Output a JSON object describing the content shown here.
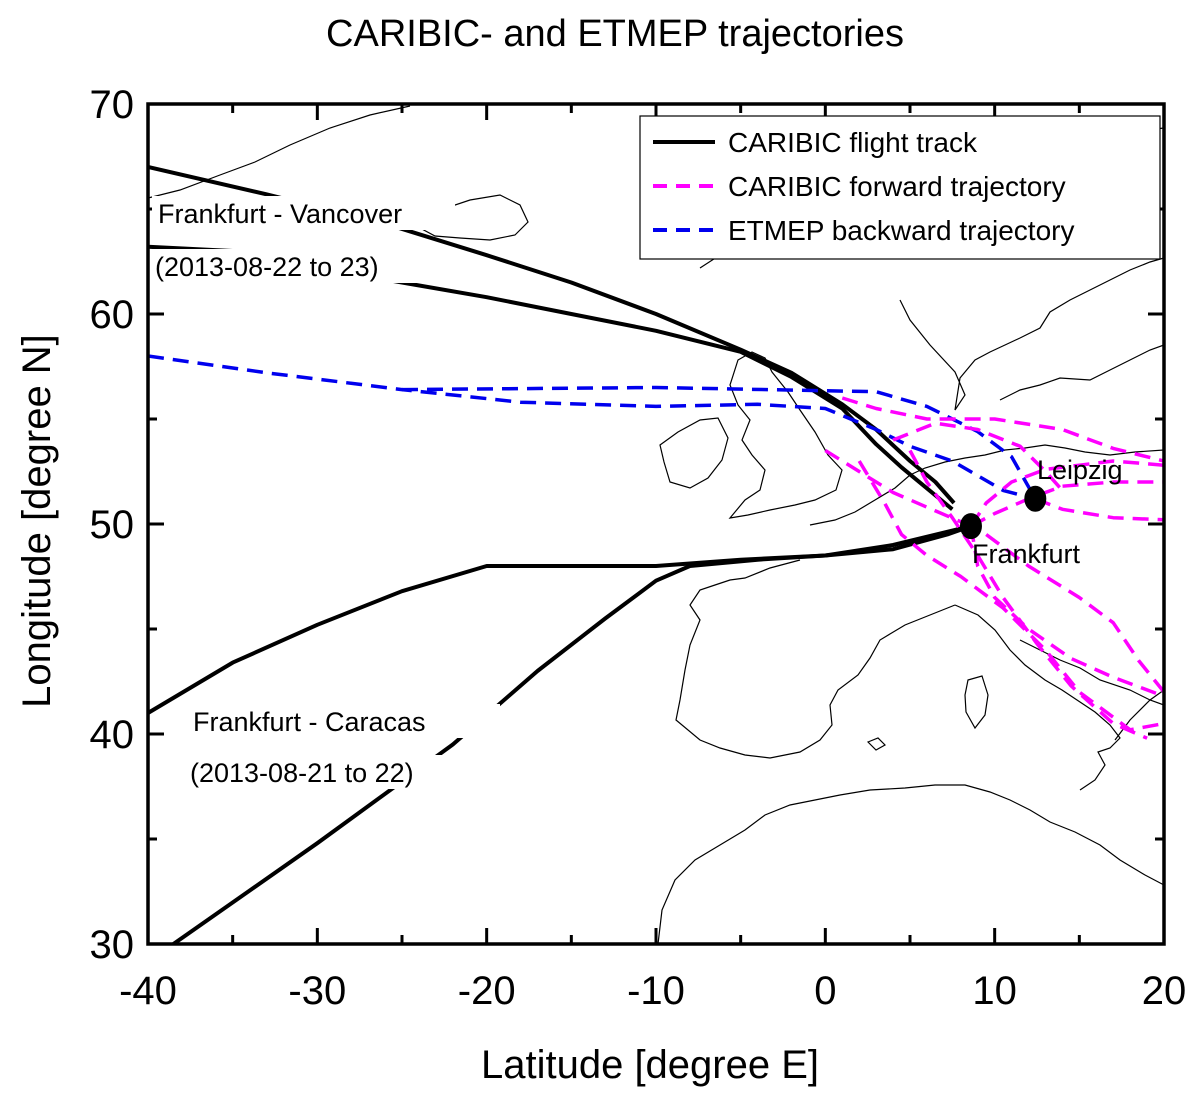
{
  "chart_data": {
    "type": "map-trajectory",
    "title": "CARIBIC- and ETMEP trajectories",
    "xlabel": "Latitude [degree E]",
    "ylabel": "Longitude [degree N]",
    "xlim": [
      -40,
      20
    ],
    "ylim": [
      30,
      70
    ],
    "xticks": [
      "-40",
      "-30",
      "-20",
      "-10",
      "0",
      "10",
      "20"
    ],
    "yticks": [
      "30",
      "40",
      "50",
      "60",
      "70"
    ],
    "legend": {
      "placement": "top-right",
      "entries": [
        {
          "label": "CARIBIC flight track",
          "color": "#000000",
          "dash": "solid"
        },
        {
          "label": "CARIBIC forward trajectory",
          "color": "#ff00ff",
          "dash": "dashed"
        },
        {
          "label": "ETMEP backward trajectory",
          "color": "#0000ee",
          "dash": "dashed"
        }
      ]
    },
    "annotations": {
      "vancouver_route": "Frankfurt - Vancover",
      "vancouver_dates": "(2013-08-22 to 23)",
      "caracas_route": "Frankfurt - Caracas",
      "caracas_dates": "(2013-08-21 to 22)",
      "frankfurt": "Frankfurt",
      "leipzig": "Leipzig"
    },
    "stations": [
      {
        "name": "Frankfurt",
        "x": 8.6,
        "y": 49.9
      },
      {
        "name": "Leipzig",
        "x": 12.4,
        "y": 51.2
      }
    ],
    "series": [
      {
        "kind": "flight",
        "color": "#000000",
        "dash": "solid",
        "points": [
          [
            -40,
            67
          ],
          [
            -33,
            65.7
          ],
          [
            -26,
            64.3
          ],
          [
            -20,
            62.8
          ],
          [
            -15,
            61.5
          ],
          [
            -10,
            60
          ],
          [
            -5,
            58.3
          ],
          [
            -2,
            57.2
          ],
          [
            1,
            55.7
          ],
          [
            3,
            54.5
          ],
          [
            5,
            53
          ],
          [
            6.5,
            52
          ],
          [
            7.6,
            51
          ]
        ]
      },
      {
        "kind": "flight",
        "color": "#000000",
        "dash": "solid",
        "points": [
          [
            -40,
            63.2
          ],
          [
            -35,
            63
          ],
          [
            -30,
            62.2
          ],
          [
            -25,
            61.5
          ],
          [
            -20,
            60.8
          ],
          [
            -15,
            60
          ],
          [
            -10,
            59.2
          ],
          [
            -5,
            58.2
          ],
          [
            -2,
            57
          ],
          [
            1,
            55.5
          ],
          [
            3,
            53.8
          ],
          [
            4.5,
            52.7
          ],
          [
            6,
            51.7
          ],
          [
            7.5,
            50.7
          ]
        ]
      },
      {
        "kind": "flight",
        "color": "#000000",
        "dash": "solid",
        "points": [
          [
            -40,
            41
          ],
          [
            -35,
            43.4
          ],
          [
            -30,
            45.2
          ],
          [
            -25,
            46.8
          ],
          [
            -20,
            48
          ],
          [
            -10,
            48
          ],
          [
            -5,
            48.3
          ],
          [
            0,
            48.5
          ],
          [
            4,
            48.8
          ],
          [
            7.2,
            49.5
          ],
          [
            8.6,
            49.9
          ]
        ]
      },
      {
        "kind": "flight",
        "color": "#000000",
        "dash": "solid",
        "points": [
          [
            -38.5,
            30
          ],
          [
            -30,
            34.8
          ],
          [
            -22,
            39.5
          ],
          [
            -17,
            43
          ],
          [
            -13,
            45.5
          ],
          [
            -10,
            47.3
          ],
          [
            -8,
            48
          ],
          [
            -4,
            48.3
          ],
          [
            0,
            48.5
          ],
          [
            4,
            49
          ],
          [
            8.6,
            49.9
          ]
        ]
      },
      {
        "kind": "backward",
        "color": "#0000ee",
        "dash": "dashed",
        "points": [
          [
            -40,
            58
          ],
          [
            -33,
            57.2
          ],
          [
            -25,
            56.4
          ],
          [
            -18,
            55.8
          ],
          [
            -10,
            55.6
          ],
          [
            -4,
            55.7
          ],
          [
            0,
            55.5
          ],
          [
            3,
            54.5
          ],
          [
            5,
            53.7
          ],
          [
            7.5,
            53
          ],
          [
            9,
            52.3
          ],
          [
            10.5,
            51.6
          ],
          [
            12.4,
            51.2
          ]
        ]
      },
      {
        "kind": "backward",
        "color": "#0000ee",
        "dash": "dashed",
        "points": [
          [
            -25,
            56.4
          ],
          [
            -10,
            56.5
          ],
          [
            3,
            56.3
          ],
          [
            6,
            55.6
          ],
          [
            9,
            54.4
          ],
          [
            11,
            53.2
          ],
          [
            12.4,
            51.2
          ]
        ]
      },
      {
        "kind": "forward",
        "color": "#ff00ff",
        "dash": "dashed",
        "points": [
          [
            8.6,
            49.9
          ],
          [
            10,
            50.5
          ],
          [
            12,
            51.2
          ],
          [
            14,
            51.8
          ],
          [
            17,
            52
          ],
          [
            20,
            52
          ]
        ]
      },
      {
        "kind": "forward",
        "color": "#ff00ff",
        "dash": "dashed",
        "points": [
          [
            12.4,
            51.2
          ],
          [
            14,
            50.7
          ],
          [
            17,
            50.3
          ],
          [
            20,
            50.2
          ]
        ]
      },
      {
        "kind": "forward",
        "color": "#ff00ff",
        "dash": "dashed",
        "points": [
          [
            8.6,
            49.9
          ],
          [
            9.5,
            51
          ],
          [
            11,
            52
          ],
          [
            13,
            52.6
          ],
          [
            15,
            52.8
          ],
          [
            17,
            53
          ],
          [
            20,
            52.8
          ]
        ]
      },
      {
        "kind": "forward",
        "color": "#ff00ff",
        "dash": "dashed",
        "points": [
          [
            1,
            56
          ],
          [
            3,
            55.5
          ],
          [
            6,
            55
          ],
          [
            10,
            55
          ],
          [
            14,
            54.5
          ],
          [
            17,
            53.6
          ],
          [
            20,
            53
          ]
        ]
      },
      {
        "kind": "forward",
        "color": "#ff00ff",
        "dash": "dashed",
        "points": [
          [
            0,
            53.5
          ],
          [
            2,
            52.5
          ],
          [
            4,
            51.5
          ],
          [
            6,
            50.8
          ],
          [
            8.6,
            49.9
          ]
        ]
      },
      {
        "kind": "forward",
        "color": "#ff00ff",
        "dash": "dashed",
        "points": [
          [
            2,
            53
          ],
          [
            3.5,
            51
          ],
          [
            4.5,
            49.5
          ],
          [
            6,
            48.5
          ],
          [
            8,
            47.5
          ],
          [
            10.5,
            46
          ],
          [
            13,
            44
          ],
          [
            15,
            42
          ],
          [
            18,
            40.2
          ],
          [
            20,
            40.5
          ]
        ]
      },
      {
        "kind": "forward",
        "color": "#ff00ff",
        "dash": "dashed",
        "points": [
          [
            8.6,
            49.9
          ],
          [
            9,
            48
          ],
          [
            10,
            46.5
          ],
          [
            12,
            45
          ],
          [
            14.5,
            43.6
          ],
          [
            17,
            42.7
          ],
          [
            20,
            41.8
          ]
        ]
      },
      {
        "kind": "forward",
        "color": "#ff00ff",
        "dash": "dashed",
        "points": [
          [
            5,
            53.5
          ],
          [
            6,
            52
          ],
          [
            7.5,
            50.3
          ],
          [
            9,
            48.5
          ],
          [
            10.5,
            46.5
          ],
          [
            12.5,
            44.3
          ],
          [
            14.5,
            42.3
          ],
          [
            17,
            40.5
          ],
          [
            19,
            39.8
          ]
        ]
      },
      {
        "kind": "forward",
        "color": "#ff00ff",
        "dash": "dashed",
        "points": [
          [
            4,
            54
          ],
          [
            6.5,
            54.8
          ],
          [
            9,
            54.5
          ],
          [
            11.5,
            53.7
          ],
          [
            13,
            52.5
          ],
          [
            14,
            51.6
          ]
        ]
      },
      {
        "kind": "forward",
        "color": "#ff00ff",
        "dash": "dashed",
        "points": [
          [
            9.5,
            49.5
          ],
          [
            12,
            48
          ],
          [
            15,
            46.5
          ],
          [
            17,
            45.3
          ],
          [
            18.5,
            43.5
          ],
          [
            20,
            42
          ]
        ]
      }
    ]
  }
}
